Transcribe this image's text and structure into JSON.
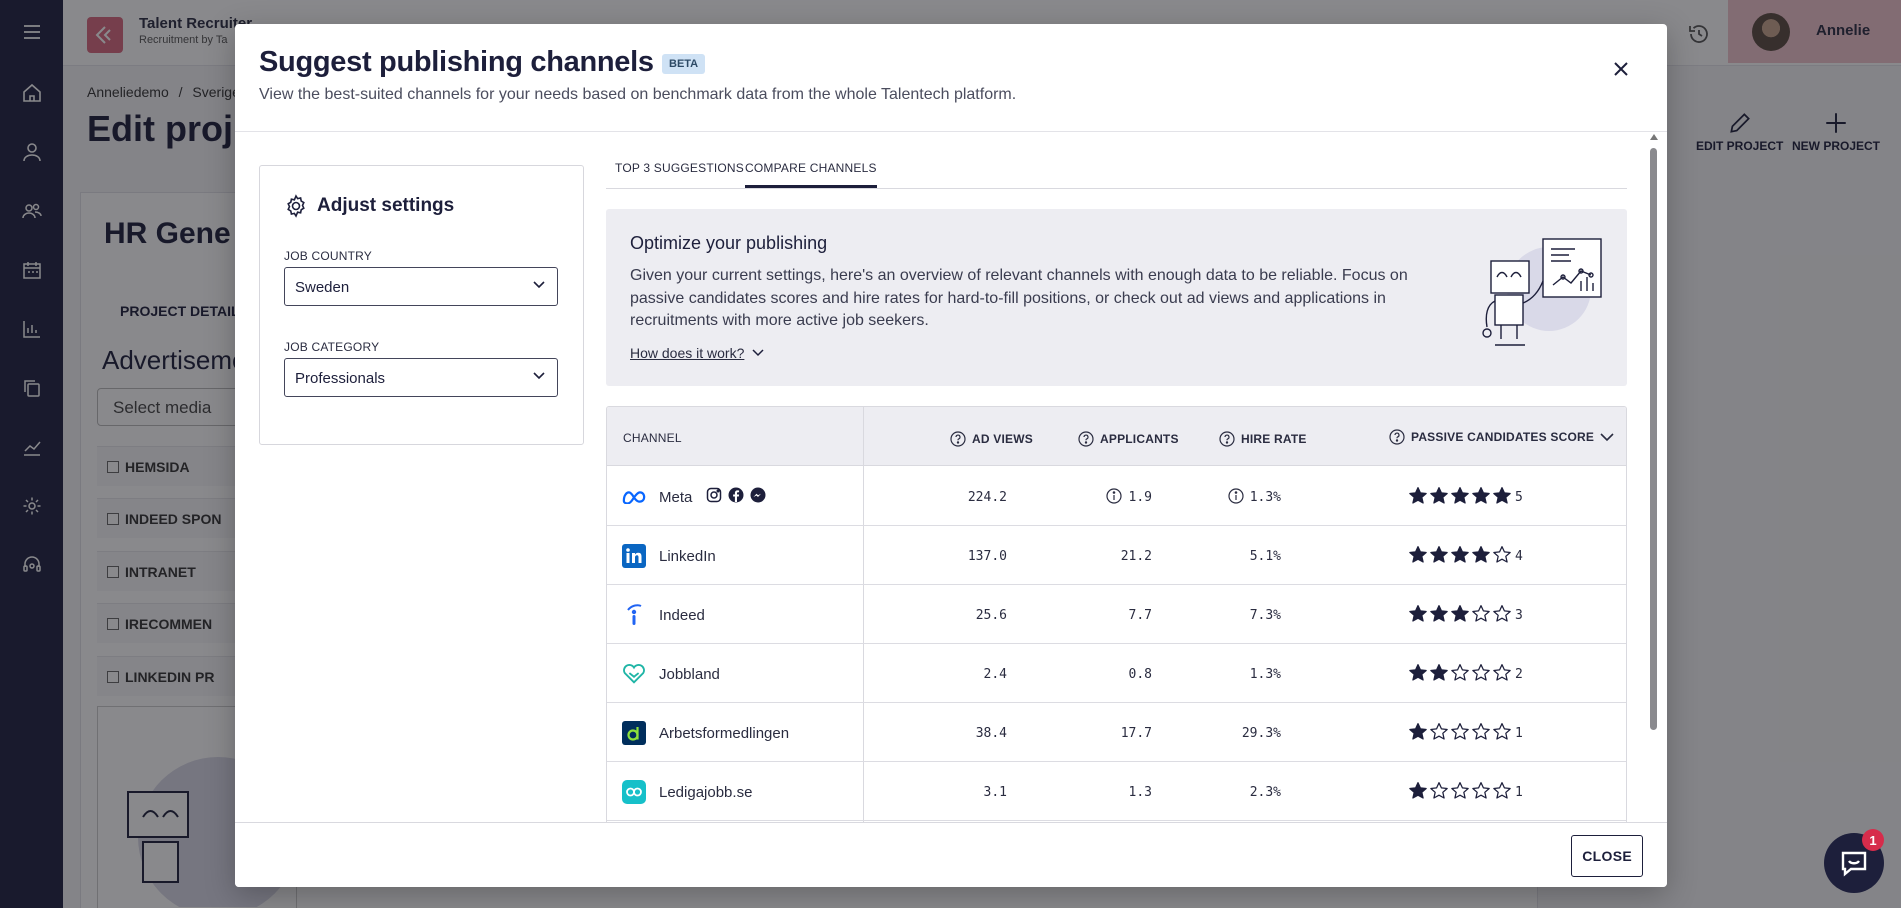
{
  "app": {
    "title": "Talent Recruiter",
    "subtitle": "Recruitment by Ta",
    "user_name": "Annelie",
    "breadcrumb": [
      "Anneliedemo",
      "/",
      "Sverige"
    ],
    "page_title": "Edit proj",
    "header_actions": [
      "EDIT PROJECT",
      "NEW PROJECT"
    ],
    "card_title": "HR Gene",
    "card_tab": "PROJECT DETAILS",
    "card_section": "Advertiseme",
    "select_media_placeholder": "Select media",
    "media_rows": [
      "HEMSIDA",
      "INDEED SPON",
      "INTRANET",
      "IRECOMMEN",
      "LINKEDIN PR"
    ]
  },
  "modal": {
    "title": "Suggest publishing channels",
    "badge": "BETA",
    "subtitle": "View the best-suited channels for your needs based on benchmark data from the whole Talentech platform.",
    "settings": {
      "title": "Adjust settings",
      "job_country_label": "JOB COUNTRY",
      "job_country_value": "Sweden",
      "job_category_label": "JOB CATEGORY",
      "job_category_value": "Professionals"
    },
    "tabs": [
      {
        "label": "TOP 3 SUGGESTIONS",
        "active": false
      },
      {
        "label": "COMPARE CHANNELS",
        "active": true
      }
    ],
    "promo": {
      "title": "Optimize your publishing",
      "text": "Given your current settings, here's an overview of relevant channels with enough data to be reliable. Focus on passive candidates scores and hire rates for hard-to-fill positions, or check out ad views and applications in recruitments with more active job seekers.",
      "link": "How does it work?"
    },
    "table": {
      "headers": {
        "channel": "CHANNEL",
        "ad_views": "AD VIEWS",
        "applicants": "APPLICANTS",
        "hire_rate": "HIRE RATE",
        "passive_score": "PASSIVE CANDIDATES SCORE"
      },
      "rows": [
        {
          "name": "Meta",
          "icon": "meta-icon",
          "ad_views": "224.2",
          "applicants": "1.9",
          "hire_rate": "1.3%",
          "score": 5,
          "score_label": "5",
          "info": true,
          "socials": [
            "instagram-icon",
            "facebook-icon",
            "messenger-icon"
          ]
        },
        {
          "name": "LinkedIn",
          "icon": "linkedin-icon",
          "ad_views": "137.0",
          "applicants": "21.2",
          "hire_rate": "5.1%",
          "score": 4,
          "score_label": "4"
        },
        {
          "name": "Indeed",
          "icon": "indeed-icon",
          "ad_views": "25.6",
          "applicants": "7.7",
          "hire_rate": "7.3%",
          "score": 3,
          "score_label": "3"
        },
        {
          "name": "Jobbland",
          "icon": "jobbland-icon",
          "ad_views": "2.4",
          "applicants": "0.8",
          "hire_rate": "1.3%",
          "score": 2,
          "score_label": "2"
        },
        {
          "name": "Arbetsformedlingen",
          "icon": "arbetsformedlingen-icon",
          "ad_views": "38.4",
          "applicants": "17.7",
          "hire_rate": "29.3%",
          "score": 1,
          "score_label": "1"
        },
        {
          "name": "Ledigajobb.se",
          "icon": "ledigajobb-icon",
          "ad_views": "3.1",
          "applicants": "1.3",
          "hire_rate": "2.3%",
          "score": 1,
          "score_label": "1"
        }
      ]
    },
    "close_label": "CLOSE"
  },
  "chat_badge": "1",
  "colors": {
    "sidebar": "#1e2140",
    "accent_dark": "#1d1f3b",
    "brand_pink": "#d8697e",
    "badge_red": "#d72c4b",
    "beta_bg": "#cfe2f5"
  }
}
